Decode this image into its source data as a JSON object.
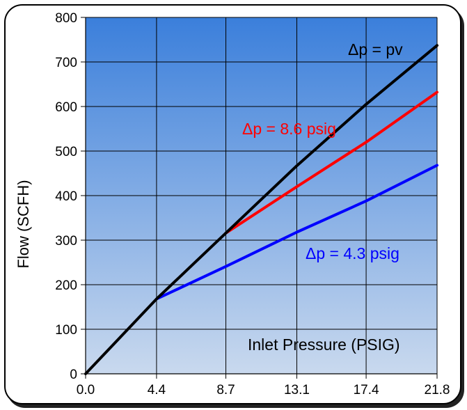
{
  "chart_data": {
    "type": "line",
    "title": "",
    "xlabel": "Inlet Pressure (PSIG)",
    "ylabel": "Flow  (SCFH)",
    "xlim": [
      0,
      21.8
    ],
    "ylim": [
      0,
      800
    ],
    "x_ticks": [
      "0.0",
      "4.4",
      "8.7",
      "13.1",
      "17.4",
      "21.8"
    ],
    "y_ticks": [
      "0",
      "100",
      "200",
      "300",
      "400",
      "500",
      "600",
      "700",
      "800"
    ],
    "grid": true,
    "background": {
      "top": "#3b7fdb",
      "bottom": "#c9d9ee"
    },
    "series": [
      {
        "name": "Δp = pv",
        "color": "#000000",
        "x": [
          0,
          4.4,
          8.7,
          13.1,
          17.4,
          21.8
        ],
        "y": [
          0,
          168,
          316,
          467,
          605,
          737
        ]
      },
      {
        "name": "Δp = 8.6 psig",
        "color": "#ff0000",
        "x": [
          8.7,
          13.1,
          17.4,
          21.8
        ],
        "y": [
          316,
          420,
          520,
          632
        ]
      },
      {
        "name": "Δp = 4.3 psig",
        "color": "#0000ff",
        "x": [
          4.4,
          8.7,
          13.1,
          17.4,
          21.8
        ],
        "y": [
          168,
          241,
          318,
          388,
          468
        ]
      }
    ],
    "annotations": [
      {
        "text": "Δp = pv",
        "color": "#000000"
      },
      {
        "text": "Δp = 8.6 psig",
        "color": "#ff0000"
      },
      {
        "text": "Δp = 4.3 psig",
        "color": "#0000ff"
      }
    ]
  }
}
